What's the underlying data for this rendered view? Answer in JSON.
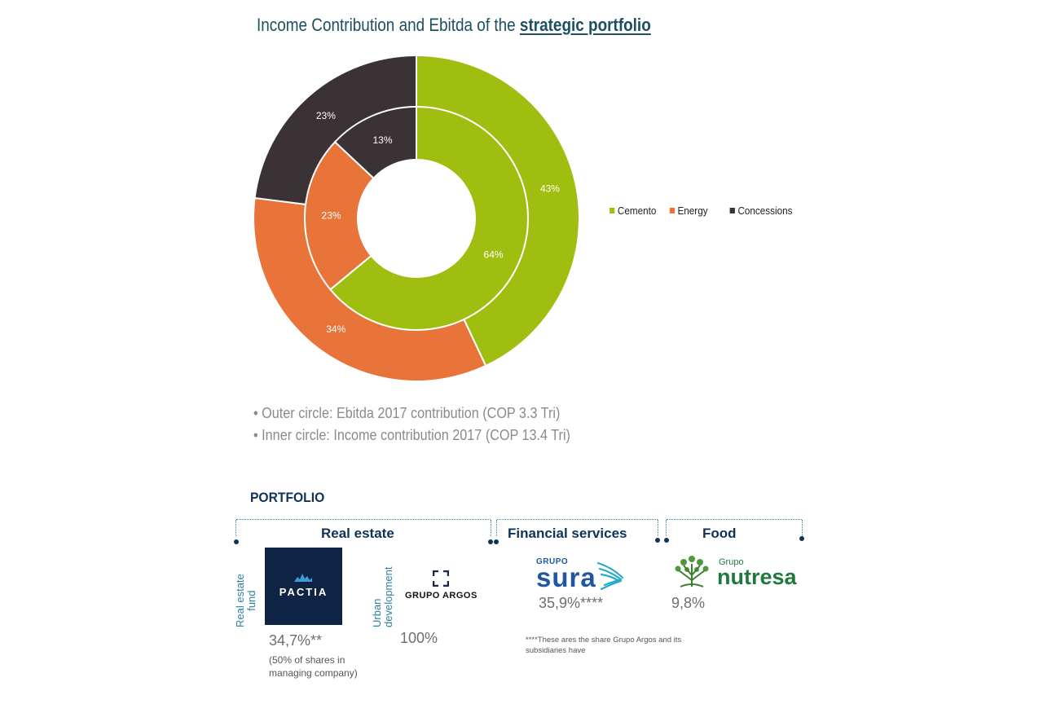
{
  "header": {
    "title_prefix": "Income Contribution and Ebitda of the",
    "title_emphasis": "strategic portfolio"
  },
  "chart_data": {
    "type": "pie",
    "categories": [
      "Cemento",
      "Energy",
      "Concessions"
    ],
    "colors": [
      "#9fbe0f",
      "#e8743a",
      "#3b3235"
    ],
    "series": [
      {
        "ring": "outer",
        "values": [
          43,
          34,
          23
        ],
        "labels": [
          "43%",
          "34%",
          "23%"
        ]
      },
      {
        "ring": "inner",
        "values": [
          64,
          23,
          13
        ],
        "labels": [
          "64%",
          "23%",
          "13%"
        ]
      }
    ],
    "legend_position": "right"
  },
  "legend": [
    {
      "label": "Cemento",
      "color": "#9fbe0f"
    },
    {
      "label": "Energy",
      "color": "#e8743a"
    },
    {
      "label": "Concessions",
      "color": "#3b3235"
    }
  ],
  "notes": [
    "• Outer circle: Ebitda 2017 contribution (COP 3.3 Tri)",
    "• Inner circle: Income contribution 2017 (COP 13.4 Tri)"
  ],
  "portfolio": {
    "title": "PORTFOLIO",
    "categories": {
      "real_estate": "Real estate",
      "financial": "Financial services",
      "food": "Food"
    },
    "pactia": {
      "logo_text": "PACTIA",
      "vertical_label_1": "Real estate",
      "vertical_label_2": "fund",
      "percent": "34,7%**",
      "note_1": "(50% of shares in",
      "note_2": "managing company)"
    },
    "argos": {
      "logo_text": "GRUPO ARGOS",
      "vertical_label_1": "Urban",
      "vertical_label_2": "development",
      "percent": "100%"
    },
    "sura": {
      "logo_small": "GRUPO",
      "logo_big": "sura",
      "percent": "35,9%****",
      "footnote_1": "****These ares the share Grupo Argos and its",
      "footnote_2": "subsidiaries have"
    },
    "nutresa": {
      "logo_small": "Grupo",
      "logo_big": "nutresa",
      "percent": "9,8%"
    }
  }
}
